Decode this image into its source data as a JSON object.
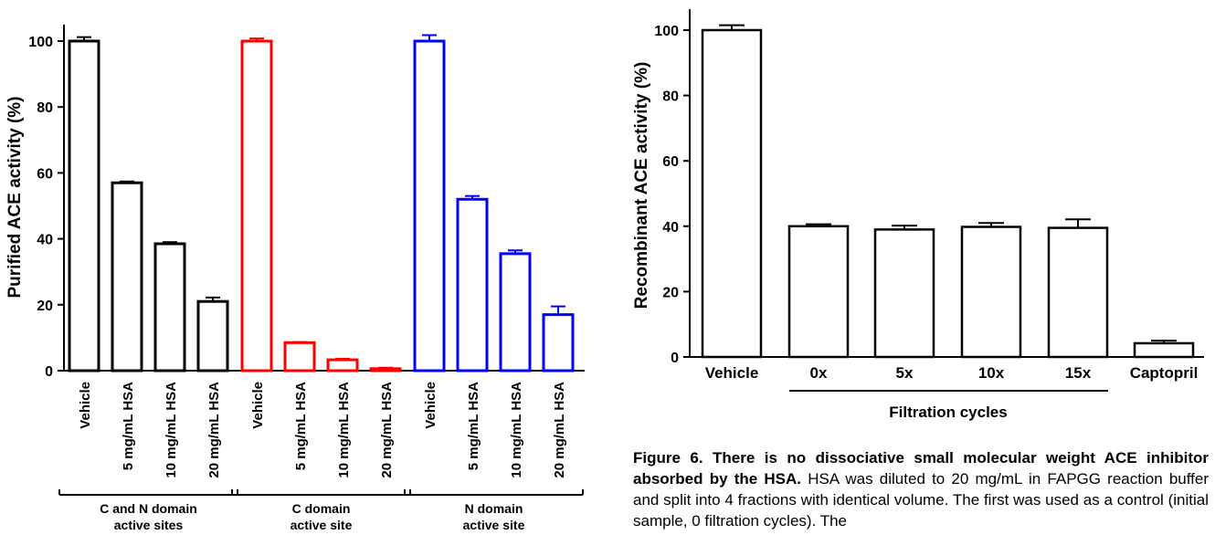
{
  "chart_data": [
    {
      "type": "bar",
      "ylabel": "Purified ACE activity (%)",
      "ylim": [
        0,
        100
      ],
      "yticks": [
        0,
        20,
        40,
        60,
        80,
        100
      ],
      "categories": [
        "Vehicle",
        "5 mg/mL HSA",
        "10 mg/mL HSA",
        "20 mg/mL HSA"
      ],
      "series": [
        {
          "name": "C and N domain active sites",
          "color": "#000000",
          "values": [
            100,
            57,
            38.5,
            21
          ],
          "errors": [
            1.2,
            0.4,
            0.5,
            1.2
          ]
        },
        {
          "name": "C domain active site",
          "color": "#ff0000",
          "values": [
            100,
            8.5,
            3.3,
            0.6
          ],
          "errors": [
            0.8,
            0.2,
            0.3,
            0.3
          ]
        },
        {
          "name": "N domain active site",
          "color": "#0000ff",
          "values": [
            100,
            52,
            35.5,
            17
          ],
          "errors": [
            1.8,
            1.0,
            1.0,
            2.5
          ]
        }
      ]
    },
    {
      "type": "bar",
      "ylabel": "Recombinant ACE activity (%)",
      "ylim": [
        0,
        100
      ],
      "yticks": [
        0,
        20,
        40,
        60,
        80,
        100
      ],
      "categories": [
        "Vehicle",
        "0x",
        "5x",
        "10x",
        "15x",
        "Captopril"
      ],
      "values": [
        100,
        40,
        39,
        39.8,
        39.5,
        4.2
      ],
      "errors": [
        1.5,
        0.6,
        1.2,
        1.2,
        2.6,
        0.8
      ],
      "group_label": "Filtration cycles"
    }
  ],
  "caption": {
    "bold": "Figure 6. There is no dissociative small molecular weight ACE inhibitor absorbed by the HSA.",
    "text": " HSA was diluted to 20 mg/mL in FAPGG reaction buffer and split into 4 fractions with identical volume. The first was used as a control (initial sample, 0 filtration cycles). The"
  }
}
